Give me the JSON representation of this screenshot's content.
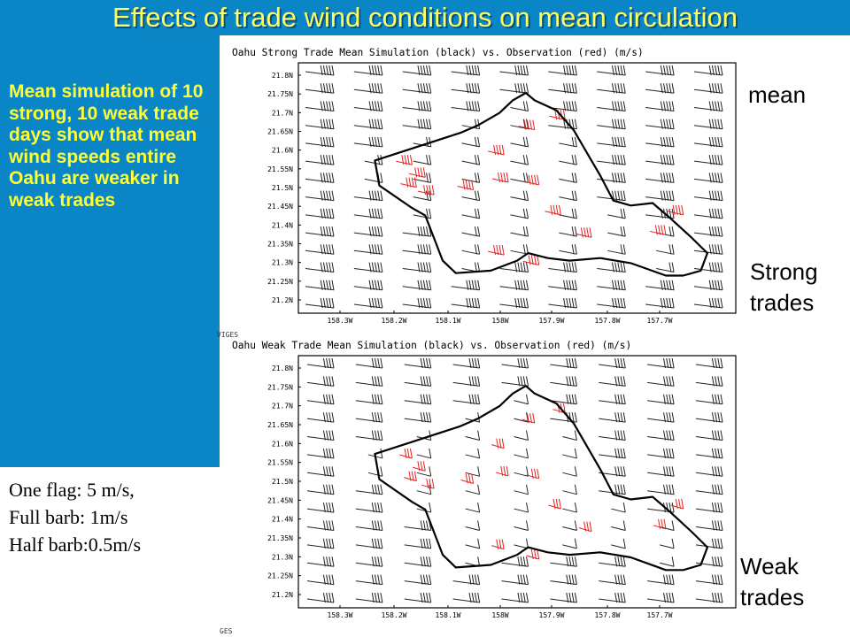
{
  "slide": {
    "title": "Effects of trade wind conditions on mean circulation",
    "summary": "Mean simulation of 10 strong, 10 weak trade days show that mean wind speeds entire Oahu are weaker in weak trades",
    "legend_notes": [
      "One flag: 5 m/s,",
      "Full barb: 1m/s",
      "Half barb:0.5m/s"
    ],
    "labels": {
      "mean": "mean",
      "strong": "Strong trades",
      "weak": "Weak trades"
    },
    "colors": {
      "banner": "#0a86c6",
      "title": "#ffff66",
      "summary": "#ffff33",
      "observation": "#e82020"
    }
  },
  "maps": [
    {
      "title": "Oahu Strong Trade Mean Simulation (black) vs. Observation (red) (m/s)",
      "corner_text": "VIGES",
      "lat_labels": [
        "21.8N",
        "21.75N",
        "21.7N",
        "21.65N",
        "21.6N",
        "21.55N",
        "21.5N",
        "21.45N",
        "21.4N",
        "21.35N",
        "21.3N",
        "21.25N",
        "21.2N"
      ],
      "lon_labels": [
        "158.3W",
        "158.2W",
        "158.1W",
        "158W",
        "157.9W",
        "157.8W",
        "157.7W"
      ]
    },
    {
      "title": "Oahu Weak Trade Mean Simulation (black) vs. Observation (red) (m/s)",
      "corner_text": "GES",
      "lat_labels": [
        "21.8N",
        "21.75N",
        "21.7N",
        "21.65N",
        "21.6N",
        "21.55N",
        "21.5N",
        "21.45N",
        "21.4N",
        "21.35N",
        "21.3N",
        "21.25N",
        "21.2N"
      ],
      "lon_labels": [
        "158.3W",
        "158.2W",
        "158.1W",
        "158W",
        "157.9W",
        "157.8W",
        "157.7W"
      ]
    }
  ]
}
